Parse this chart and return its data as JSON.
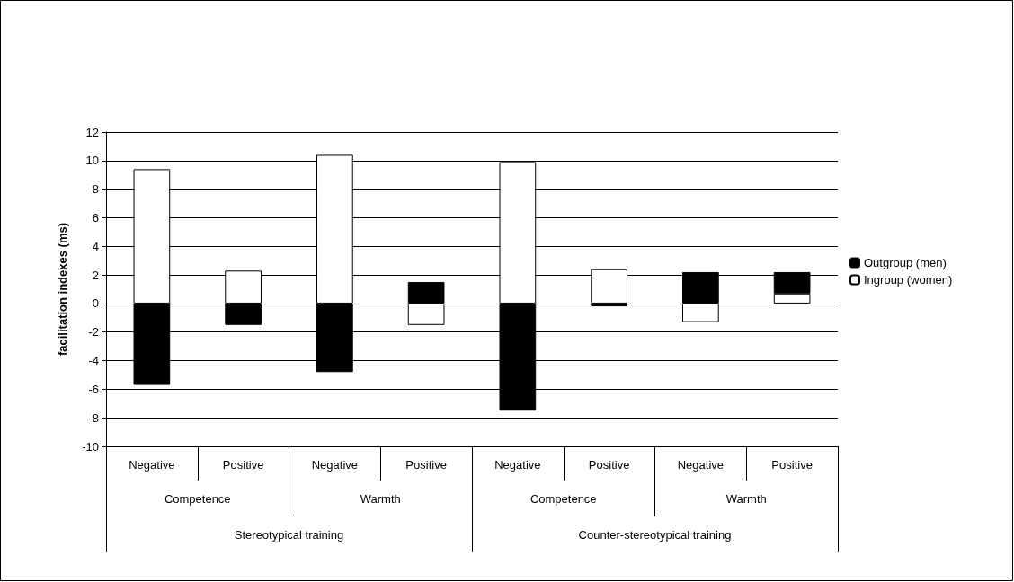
{
  "chart_data": {
    "type": "bar",
    "stacked": true,
    "ylabel": "facilitation indexes (ms)",
    "categories": [
      "Negative",
      "Positive",
      "Negative",
      "Positive",
      "Negative",
      "Positive",
      "Negative",
      "Positive"
    ],
    "annotations": [
      "Competence",
      "Warmth",
      "Competence",
      "Warmth",
      "Stereotypical training",
      "Counter-stereotypical training"
    ],
    "series": [
      {
        "name": "Ingroup (women)",
        "color": "#ffffff",
        "values": [
          9.4,
          2.3,
          10.4,
          -1.5,
          9.9,
          2.4,
          -1.3,
          0.7
        ]
      },
      {
        "name": "Outgroup (men)",
        "color": "#000000",
        "values": [
          -5.7,
          -1.5,
          -4.8,
          1.5,
          -7.5,
          -0.2,
          2.2,
          1.5
        ]
      }
    ],
    "ylim": [
      -10,
      12
    ],
    "yticks": [
      -10,
      -8,
      -6,
      -4,
      -2,
      0,
      2,
      4,
      6,
      8,
      10,
      12
    ],
    "grid": "y",
    "legend": "right"
  }
}
